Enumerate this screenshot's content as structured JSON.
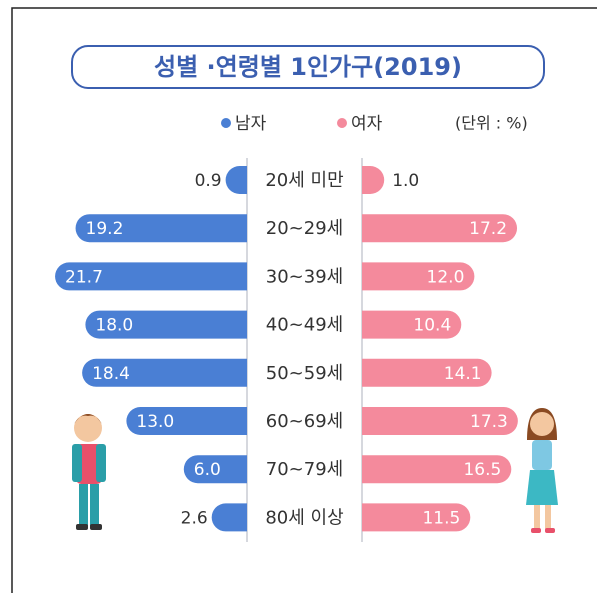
{
  "chart_data": {
    "type": "butterfly",
    "title": "성별 ·연령별 1인가구(2019)",
    "unit_note": "(단위 : %)",
    "categories": [
      "20세 미만",
      "20~29세",
      "30~39세",
      "40~49세",
      "50~59세",
      "60~69세",
      "70~79세",
      "80세 이상"
    ],
    "series": [
      {
        "name": "남자",
        "color": "#4a7fd4",
        "values": [
          0.9,
          19.2,
          21.7,
          18.0,
          18.4,
          13.0,
          6.0,
          2.6
        ],
        "value_labels": [
          "0.9",
          "19.2",
          "21.7",
          "18.0",
          "18.4",
          "13.0",
          "6.0",
          "2.6"
        ]
      },
      {
        "name": "여자",
        "color": "#f48a9c",
        "values": [
          1.0,
          17.2,
          12.0,
          10.4,
          14.1,
          17.3,
          16.5,
          11.5
        ],
        "value_labels": [
          "1.0",
          "17.2",
          "12.0",
          "10.4",
          "14.1",
          "17.3",
          "16.5",
          "11.5"
        ]
      }
    ]
  }
}
